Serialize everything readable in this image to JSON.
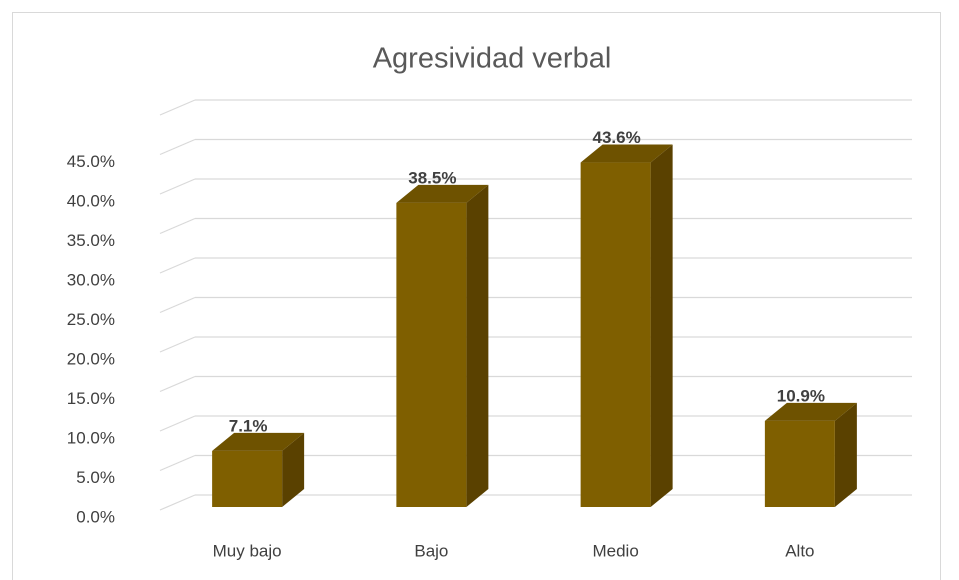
{
  "chart_data": {
    "type": "bar3d",
    "title": "Agresividad verbal",
    "categories": [
      "Muy bajo",
      "Bajo",
      "Medio",
      "Alto"
    ],
    "values": [
      7.1,
      38.5,
      43.6,
      10.9
    ],
    "value_labels": [
      "7.1%",
      "38.5%",
      "43.6%",
      "10.9%"
    ],
    "color": "#7f5f00",
    "ylim": [
      0,
      50
    ],
    "yticks": [
      {
        "value": 0,
        "label": "0.0%"
      },
      {
        "value": 5,
        "label": "5.0%"
      },
      {
        "value": 10,
        "label": "10.0%"
      },
      {
        "value": 15,
        "label": "15.0%"
      },
      {
        "value": 20,
        "label": "20.0%"
      },
      {
        "value": 25,
        "label": "25.0%"
      },
      {
        "value": 30,
        "label": "30.0%"
      },
      {
        "value": 35,
        "label": "35.0%"
      },
      {
        "value": 40,
        "label": "40.0%"
      },
      {
        "value": 45,
        "label": "45.0%"
      }
    ],
    "grid": true
  }
}
